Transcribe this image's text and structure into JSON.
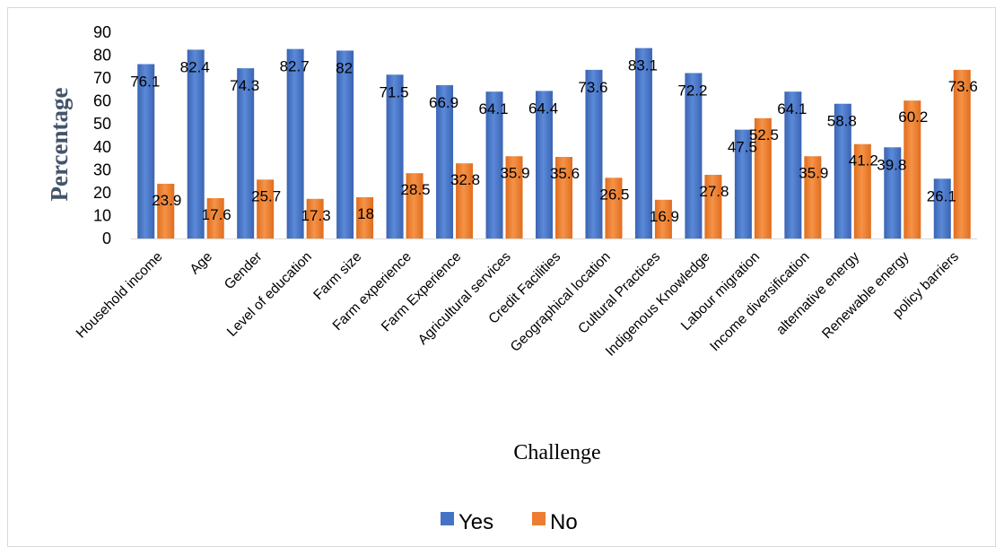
{
  "chart_data": {
    "type": "bar",
    "title": "",
    "xlabel": "Challenge",
    "ylabel": "Percentage",
    "ylim": [
      0,
      90
    ],
    "yticks": [
      0,
      10,
      20,
      30,
      40,
      50,
      60,
      70,
      80,
      90
    ],
    "grid": false,
    "legend": "bottom",
    "categories": [
      "Household income",
      "Age",
      "Gender",
      "Level of education",
      "Farm size",
      "Farm experience",
      "Farm Experience",
      "Agricultural  services",
      "Credit Facilities",
      "Geographical location",
      "Cultural Practices",
      "Indigenous Knowledge",
      "Labour migration",
      "Income diversification",
      "alternative energy",
      "Renewable energy",
      "policy barriers"
    ],
    "series": [
      {
        "name": "Yes",
        "color": "#4472c4",
        "values": [
          76.1,
          82.4,
          74.3,
          82.7,
          82,
          71.5,
          66.9,
          64.1,
          64.4,
          73.6,
          83.1,
          72.2,
          47.5,
          64.1,
          58.8,
          39.8,
          26.1
        ]
      },
      {
        "name": "No",
        "color": "#ed7d31",
        "values": [
          23.9,
          17.6,
          25.7,
          17.3,
          18,
          28.5,
          32.8,
          35.9,
          35.6,
          26.5,
          16.9,
          27.8,
          52.5,
          35.9,
          41.2,
          60.2,
          73.6
        ]
      }
    ]
  }
}
